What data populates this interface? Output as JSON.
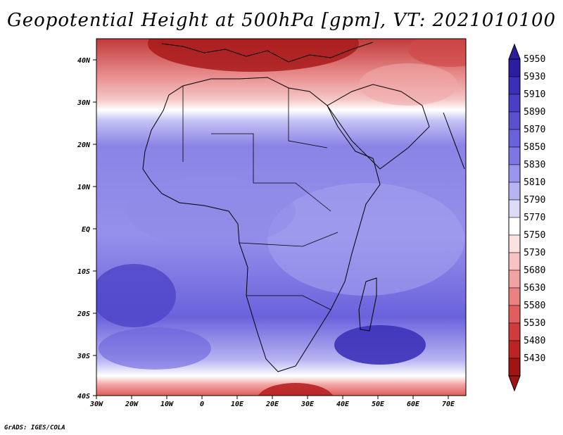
{
  "title": "Geopotential Height at 500hPa [gpm], VT: 2021010100",
  "credit": "GrADS: IGES/COLA",
  "map": {
    "lon_range": [
      -30,
      75
    ],
    "lat_range": [
      -40,
      45
    ],
    "lat_ticks": [
      "40N",
      "30N",
      "20N",
      "10N",
      "EQ",
      "10S",
      "20S",
      "30S",
      "40S"
    ],
    "lon_ticks": [
      "30W",
      "20W",
      "10W",
      "0",
      "10E",
      "20E",
      "30E",
      "40E",
      "50E",
      "60E",
      "70E"
    ]
  },
  "colorbar": {
    "levels": [
      "5950",
      "5930",
      "5910",
      "5890",
      "5870",
      "5850",
      "5830",
      "5810",
      "5790",
      "5770",
      "5750",
      "5730",
      "5680",
      "5630",
      "5580",
      "5530",
      "5480",
      "5430"
    ],
    "colors": [
      "#2a1da0",
      "#3a2fb5",
      "#4a3fc4",
      "#5a50d0",
      "#6a62dc",
      "#7d76e4",
      "#9a95ec",
      "#b7b4f2",
      "#dcdcf8",
      "#ffffff",
      "#fde0e0",
      "#f8c2c2",
      "#f2a2a2",
      "#ea8080",
      "#e05e5e",
      "#d03c3c",
      "#bc2424",
      "#a01414"
    ]
  }
}
